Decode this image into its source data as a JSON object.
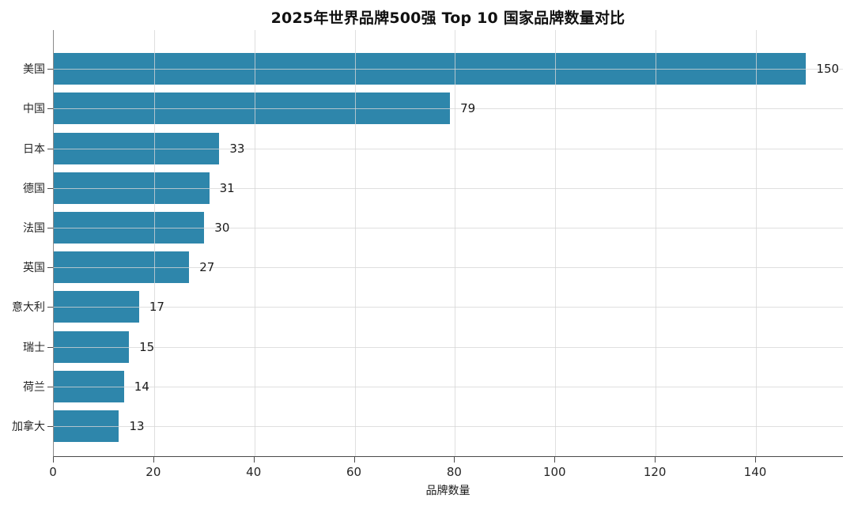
{
  "chart_data": {
    "type": "bar",
    "orientation": "horizontal",
    "title": "2025年世界品牌500强 Top 10 国家品牌数量对比",
    "xlabel": "品牌数量",
    "ylabel": "",
    "categories": [
      "美国",
      "中国",
      "日本",
      "德国",
      "法国",
      "英国",
      "意大利",
      "瑞士",
      "荷兰",
      "加拿大"
    ],
    "values": [
      150,
      79,
      33,
      31,
      30,
      27,
      17,
      15,
      14,
      13
    ],
    "value_labels": [
      "150",
      "79",
      "33",
      "31",
      "30",
      "27",
      "17",
      "15",
      "14",
      "13"
    ],
    "xticks": [
      0,
      20,
      40,
      60,
      80,
      100,
      120,
      140
    ],
    "xlim": [
      0,
      157.5
    ],
    "grid": true,
    "legend": "none",
    "colors": {
      "bar": "#2e86ab",
      "grid": "#d6d6d6",
      "text": "#1a1a1a",
      "tick_text": "#262626",
      "background": "#ffffff"
    }
  }
}
